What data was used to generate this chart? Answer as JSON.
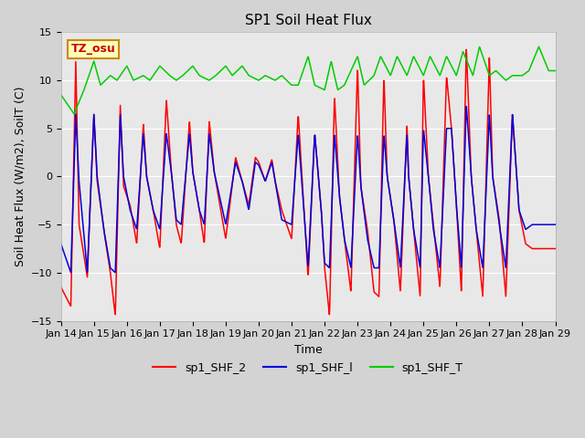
{
  "title": "SP1 Soil Heat Flux",
  "xlabel": "Time",
  "ylabel": "Soil Heat Flux (W/m2), SoilT (C)",
  "ylim": [
    -15,
    15
  ],
  "yticks": [
    -15,
    -10,
    -5,
    0,
    5,
    10,
    15
  ],
  "x_labels": [
    "Jan 14",
    "Jan 15",
    "Jan 16",
    "Jan 17",
    "Jan 18",
    "Jan 19",
    "Jan 20",
    "Jan 21",
    "Jan 22",
    "Jan 23",
    "Jan 24",
    "Jan 25",
    "Jan 26",
    "Jan 27",
    "Jan 28",
    "Jan 29"
  ],
  "color_shf2": "#ff0000",
  "color_shf1": "#0000dd",
  "color_shft": "#00cc00",
  "bg_color": "#d3d3d3",
  "plot_bg": "#e8e8e8",
  "annotation_text": "TZ_osu",
  "annotation_fg": "#cc0000",
  "annotation_bg": "#ffffbb",
  "annotation_border": "#cc8800",
  "legend_entries": [
    "sp1_SHF_2",
    "sp1_SHF_l",
    "sp1_SHF_T"
  ],
  "title_fontsize": 11,
  "tick_fontsize": 8,
  "label_fontsize": 9
}
